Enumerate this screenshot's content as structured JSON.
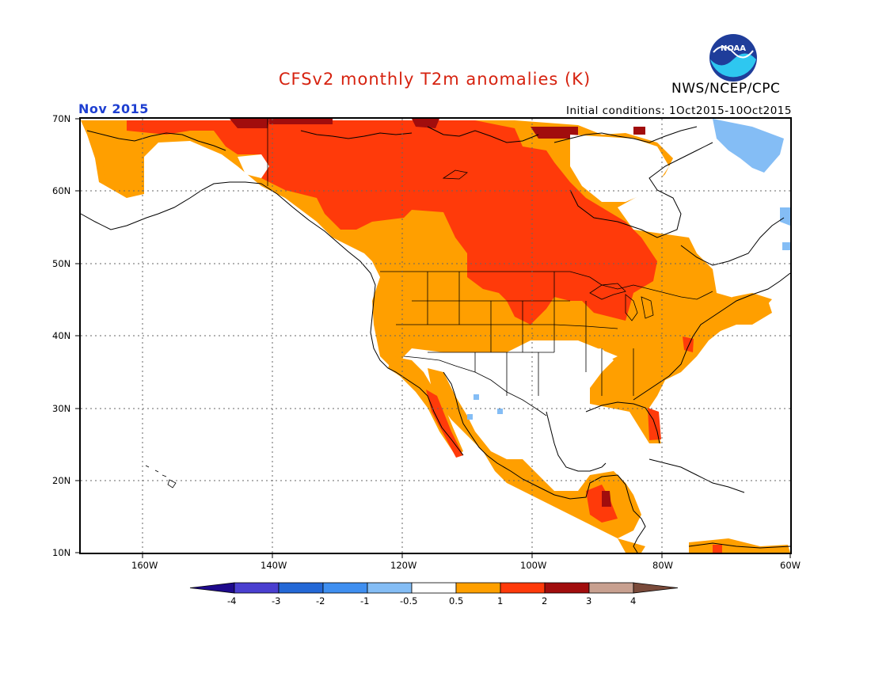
{
  "title": "CFSv2 monthly T2m anomalies (K)",
  "agency": "NWS/NCEP/CPC",
  "logo_text": "NOAA",
  "month": "Nov 2015",
  "initial_conditions": "Initial conditions: 1Oct2015-10Oct2015",
  "lat_labels": [
    "70N",
    "60N",
    "50N",
    "40N",
    "30N",
    "20N",
    "10N"
  ],
  "lon_labels": [
    "160W",
    "140W",
    "120W",
    "100W",
    "80W",
    "60W"
  ],
  "colorbar": {
    "labels": [
      "-4",
      "-3",
      "-2",
      "-1",
      "-0.5",
      "0.5",
      "1",
      "2",
      "3",
      "4"
    ],
    "colors": [
      "#1e0a8c",
      "#4a3fd0",
      "#2468d6",
      "#3f8ff0",
      "#84bdf5",
      "#ffffff",
      "#ff9f00",
      "#ff3a0a",
      "#a10d0d",
      "#c8a090",
      "#7a4a3a"
    ]
  },
  "colors": {
    "title": "#d6220f",
    "month": "#1e3fd1",
    "anomaly_0.5_1": "#ff9f00",
    "anomaly_1_2": "#ff3a0a",
    "anomaly_2_3": "#a10d0d",
    "anomaly_neg": "#84bdf5"
  }
}
